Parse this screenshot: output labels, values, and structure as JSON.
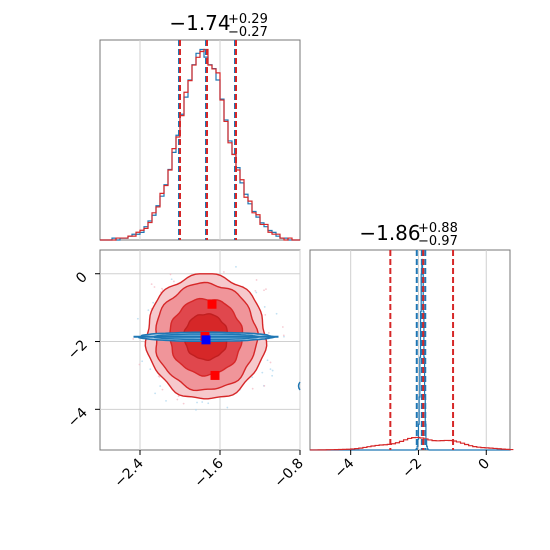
{
  "chart_data": [
    {
      "panel": "1d-marginal-top",
      "type": "step-histogram",
      "title": {
        "median": "−1.74",
        "plus": "+0.29",
        "minus": "−0.27"
      },
      "xlim": [
        -2.8,
        -0.8
      ],
      "series": [
        {
          "name": "",
          "color": "#1f77b4",
          "bins": [
            -2.8,
            -2.76,
            -2.72,
            -2.68,
            -2.64,
            -2.6,
            -2.56,
            -2.52,
            -2.48,
            -2.44,
            -2.4,
            -2.36,
            -2.32,
            -2.28,
            -2.24,
            -2.2,
            -2.16,
            -2.12,
            -2.08,
            -2.04,
            -2.0,
            -1.96,
            -1.92,
            -1.88,
            -1.84,
            -1.8,
            -1.76,
            -1.72,
            -1.68,
            -1.64,
            -1.6,
            -1.56,
            -1.52,
            -1.48,
            -1.44,
            -1.4,
            -1.36,
            -1.32,
            -1.28,
            -1.24,
            -1.2,
            -1.16,
            -1.12,
            -1.08,
            -1.04,
            -1.0,
            -0.96,
            -0.92,
            -0.88,
            -0.84
          ],
          "values": [
            0,
            0,
            0,
            1,
            0,
            1,
            1,
            2,
            3,
            3,
            4,
            7,
            10,
            13,
            18,
            23,
            29,
            37,
            46,
            55,
            66,
            75,
            84,
            92,
            98,
            100,
            96,
            92,
            90,
            84,
            74,
            63,
            52,
            45,
            38,
            30,
            24,
            19,
            15,
            12,
            9,
            7,
            5,
            4,
            2,
            1,
            1,
            0,
            0,
            0
          ],
          "lines": [
            -2.01,
            -1.74,
            -1.45
          ]
        },
        {
          "name": "",
          "color": "#d62728",
          "bins": [
            -2.8,
            -2.76,
            -2.72,
            -2.68,
            -2.64,
            -2.6,
            -2.56,
            -2.52,
            -2.48,
            -2.44,
            -2.4,
            -2.36,
            -2.32,
            -2.28,
            -2.24,
            -2.2,
            -2.16,
            -2.12,
            -2.08,
            -2.04,
            -2.0,
            -1.96,
            -1.92,
            -1.88,
            -1.84,
            -1.8,
            -1.76,
            -1.72,
            -1.68,
            -1.64,
            -1.6,
            -1.56,
            -1.52,
            -1.48,
            -1.44,
            -1.4,
            -1.36,
            -1.32,
            -1.28,
            -1.24,
            -1.2,
            -1.16,
            -1.12,
            -1.08,
            -1.04,
            -1.0,
            -0.96,
            -0.92,
            -0.88,
            -0.84
          ],
          "values": [
            0,
            0,
            0,
            0,
            1,
            1,
            1,
            2,
            2,
            4,
            5,
            6,
            9,
            14,
            17,
            24,
            28,
            36,
            47,
            53,
            64,
            76,
            82,
            90,
            94,
            97,
            98,
            90,
            88,
            86,
            72,
            61,
            50,
            44,
            36,
            31,
            22,
            20,
            14,
            13,
            8,
            8,
            4,
            3,
            3,
            1,
            0,
            1,
            0,
            0
          ],
          "lines": [
            -2.01,
            -1.74,
            -1.45
          ]
        }
      ]
    },
    {
      "panel": "2d-contour",
      "type": "contour",
      "xlim": [
        -2.8,
        -0.8
      ],
      "ylim": [
        -5.2,
        0.7
      ],
      "xticks": [
        "−2.4",
        "−1.6",
        "−0.8"
      ],
      "yticks": [
        "0",
        "−2",
        "−4"
      ],
      "grid": true,
      "series": [
        {
          "name": "",
          "color": "#d62728",
          "center": [
            -1.74,
            -1.86
          ],
          "spread_x": 0.29,
          "spread_y": 0.9
        },
        {
          "name": "",
          "color": "#1f77b4",
          "center": [
            -1.74,
            -1.86
          ],
          "spread_x": 0.29,
          "spread_y": 0.06
        }
      ],
      "markers": [
        {
          "color": "#ff0000",
          "x": -1.68,
          "y": -0.9
        },
        {
          "color": "#ff0000",
          "x": -1.75,
          "y": -1.85
        },
        {
          "color": "#ff0000",
          "x": -1.65,
          "y": -3.0
        },
        {
          "color": "#0000ff",
          "x": -1.74,
          "y": -1.95
        }
      ]
    },
    {
      "panel": "1d-marginal-right",
      "type": "step-histogram",
      "title": {
        "median": "−1.86",
        "plus": "+0.88",
        "minus": "−0.97"
      },
      "xlim": [
        -5.2,
        0.7
      ],
      "xticks": [
        "−4",
        "−2",
        "0"
      ],
      "grid": true,
      "series": [
        {
          "name": "",
          "color": "#1f77b4",
          "center": -1.9,
          "width": 0.05,
          "peak": 100,
          "lines": [
            -2.05,
            -1.9,
            -1.8
          ]
        },
        {
          "name": "",
          "color": "#d62728",
          "center": -1.86,
          "width": 1.0,
          "peak": 6,
          "lines": [
            -2.83,
            -1.86,
            -0.98
          ]
        }
      ]
    }
  ]
}
